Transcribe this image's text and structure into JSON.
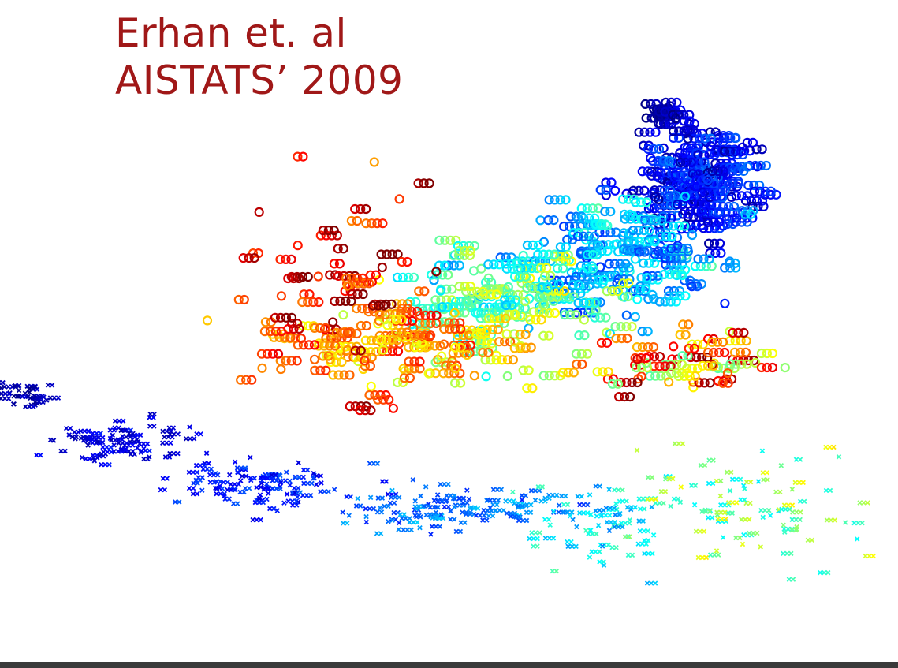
{
  "title": {
    "line1": "Erhan et. al",
    "line2": "AISTATS’ 2009",
    "color": "#a01818"
  },
  "bottom_bar_color": "#3a3a3a",
  "colormap": "jet",
  "chart_data": [
    {
      "type": "scatter",
      "marker": "circle",
      "note_series": "trajectories colored by training progress (jet colormap, t in 0..1)",
      "x_range": [
        260,
        1030
      ],
      "y_range": [
        530,
        130
      ],
      "clusters": [
        {
          "cx": 840,
          "cy": 145,
          "sx": 18,
          "sy": 10,
          "n": 30,
          "t": [
            0.0,
            0.05
          ]
        },
        {
          "cx": 880,
          "cy": 230,
          "sx": 60,
          "sy": 55,
          "n": 200,
          "t": [
            0.02,
            0.18
          ]
        },
        {
          "cx": 780,
          "cy": 330,
          "sx": 110,
          "sy": 60,
          "n": 150,
          "t": [
            0.15,
            0.38
          ]
        },
        {
          "cx": 640,
          "cy": 380,
          "sx": 120,
          "sy": 55,
          "n": 130,
          "t": [
            0.3,
            0.6
          ]
        },
        {
          "cx": 520,
          "cy": 440,
          "sx": 160,
          "sy": 50,
          "n": 110,
          "t": [
            0.55,
            0.8
          ]
        },
        {
          "cx": 420,
          "cy": 390,
          "sx": 110,
          "sy": 110,
          "n": 70,
          "t": [
            0.72,
            1.0
          ]
        },
        {
          "cx": 860,
          "cy": 460,
          "sx": 130,
          "sy": 30,
          "n": 60,
          "t": [
            0.45,
            0.95
          ]
        }
      ]
    },
    {
      "type": "scatter",
      "marker": "cross",
      "x_range": [
        0,
        1110
      ],
      "y_range": [
        760,
        480
      ],
      "clusters": [
        {
          "cx": 30,
          "cy": 500,
          "sx": 25,
          "sy": 15,
          "n": 40,
          "t": [
            0.0,
            0.06
          ]
        },
        {
          "cx": 150,
          "cy": 560,
          "sx": 70,
          "sy": 22,
          "n": 80,
          "t": [
            0.04,
            0.12
          ]
        },
        {
          "cx": 330,
          "cy": 615,
          "sx": 90,
          "sy": 22,
          "n": 110,
          "t": [
            0.08,
            0.2
          ]
        },
        {
          "cx": 560,
          "cy": 645,
          "sx": 110,
          "sy": 22,
          "n": 110,
          "t": [
            0.15,
            0.3
          ]
        },
        {
          "cx": 760,
          "cy": 660,
          "sx": 80,
          "sy": 40,
          "n": 70,
          "t": [
            0.25,
            0.45
          ]
        },
        {
          "cx": 950,
          "cy": 640,
          "sx": 110,
          "sy": 60,
          "n": 90,
          "t": [
            0.35,
            0.62
          ]
        }
      ]
    }
  ]
}
